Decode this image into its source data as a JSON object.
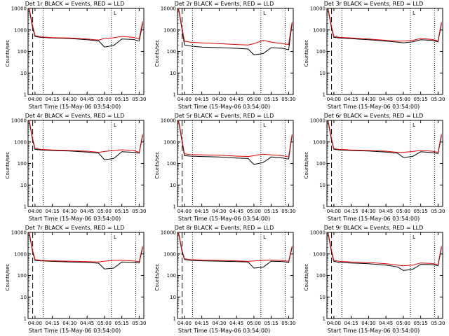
{
  "colors": {
    "events": "#000000",
    "lld": "#e00000",
    "axes": "#000000"
  },
  "chart_data": [
    {
      "type": "line",
      "title": "Det 1r BLACK = Events, RED = LLD",
      "xlabel": "Start Time (15-May-06 03:54:00)",
      "ylabel": "Counts/sec",
      "x_tick_labels": [
        "04:00",
        "04:15",
        "04:30",
        "04:45",
        "05:00",
        "05:15",
        "05:30"
      ],
      "y_tick_labels": [
        "1",
        "10",
        "100",
        "1000",
        "10000"
      ],
      "ylim": [
        1,
        10000
      ],
      "yscale": "log",
      "markers": [
        "L"
      ],
      "x": [
        "03:55",
        "03:58",
        "04:00",
        "04:05",
        "04:15",
        "04:30",
        "04:45",
        "04:55",
        "05:00",
        "05:08",
        "05:15",
        "05:25",
        "05:30",
        "05:33"
      ],
      "series": [
        {
          "name": "BLACK = Events",
          "values": [
            9000,
            1200,
            500,
            450,
            420,
            400,
            350,
            310,
            160,
            190,
            380,
            360,
            300,
            2000
          ]
        },
        {
          "name": "RED = LLD",
          "values": [
            10000,
            1500,
            550,
            470,
            440,
            420,
            380,
            340,
            400,
            430,
            500,
            450,
            380,
            2500
          ]
        }
      ]
    },
    {
      "type": "line",
      "title": "Det 2r BLACK = Events, RED = LLD",
      "xlabel": "Start Time (15-May-06 03:54:00)",
      "ylabel": "Counts/sec",
      "x_tick_labels": [
        "04:00",
        "04:15",
        "04:30",
        "04:45",
        "05:00",
        "05:15",
        "05:30"
      ],
      "y_tick_labels": [
        "1",
        "10",
        "100",
        "1000",
        "10000"
      ],
      "ylim": [
        1,
        10000
      ],
      "yscale": "log",
      "markers": [
        "L"
      ],
      "x": [
        "03:55",
        "03:58",
        "04:00",
        "04:05",
        "04:15",
        "04:30",
        "04:45",
        "04:55",
        "05:00",
        "05:08",
        "05:15",
        "05:25",
        "05:30",
        "05:33"
      ],
      "series": [
        {
          "name": "BLACK = Events",
          "values": [
            9000,
            1000,
            200,
            180,
            160,
            150,
            140,
            130,
            70,
            80,
            150,
            140,
            120,
            2000
          ]
        },
        {
          "name": "RED = LLD",
          "values": [
            10000,
            1200,
            300,
            270,
            250,
            230,
            210,
            200,
            230,
            330,
            270,
            230,
            210,
            2300
          ]
        }
      ]
    },
    {
      "type": "line",
      "title": "Det 3r BLACK = Events, RED = LLD",
      "xlabel": "Start Time (15-May-06 03:54:00)",
      "ylabel": "Counts/sec",
      "x_tick_labels": [
        "04:00",
        "04:15",
        "04:30",
        "04:45",
        "05:00",
        "05:15",
        "05:30"
      ],
      "y_tick_labels": [
        "1",
        "10",
        "100",
        "1000",
        "10000"
      ],
      "ylim": [
        1,
        10000
      ],
      "yscale": "log",
      "markers": [
        "L"
      ],
      "x": [
        "03:55",
        "03:58",
        "04:00",
        "04:05",
        "04:15",
        "04:30",
        "04:45",
        "04:55",
        "05:00",
        "05:08",
        "05:15",
        "05:25",
        "05:30",
        "05:33"
      ],
      "series": [
        {
          "name": "BLACK = Events",
          "values": [
            9000,
            1200,
            450,
            420,
            390,
            350,
            300,
            270,
            250,
            280,
            350,
            330,
            280,
            2000
          ]
        },
        {
          "name": "RED = LLD",
          "values": [
            10000,
            1400,
            500,
            450,
            420,
            380,
            330,
            300,
            300,
            330,
            400,
            360,
            310,
            2300
          ]
        }
      ]
    },
    {
      "type": "line",
      "title": "Det 4r BLACK = Events, RED = LLD",
      "xlabel": "Start Time (15-May-06 03:54:00)",
      "ylabel": "Counts/sec",
      "x_tick_labels": [
        "04:00",
        "04:15",
        "04:30",
        "04:45",
        "05:00",
        "05:15",
        "05:30"
      ],
      "y_tick_labels": [
        "1",
        "10",
        "100",
        "1000",
        "10000"
      ],
      "ylim": [
        1,
        10000
      ],
      "yscale": "log",
      "markers": [
        "L"
      ],
      "x": [
        "03:55",
        "03:58",
        "04:00",
        "04:05",
        "04:15",
        "04:30",
        "04:45",
        "04:55",
        "05:00",
        "05:08",
        "05:15",
        "05:25",
        "05:30",
        "05:33"
      ],
      "series": [
        {
          "name": "BLACK = Events",
          "values": [
            9000,
            1200,
            450,
            420,
            400,
            380,
            340,
            300,
            150,
            170,
            350,
            330,
            300,
            2000
          ]
        },
        {
          "name": "RED = LLD",
          "values": [
            10000,
            1400,
            500,
            450,
            420,
            400,
            370,
            330,
            360,
            400,
            430,
            400,
            330,
            2300
          ]
        }
      ]
    },
    {
      "type": "line",
      "title": "Det 5r BLACK = Events, RED = LLD",
      "xlabel": "Start Time (15-May-06 03:54:00)",
      "ylabel": "Counts/sec",
      "x_tick_labels": [
        "04:00",
        "04:15",
        "04:30",
        "04:45",
        "05:00",
        "05:15",
        "05:30"
      ],
      "y_tick_labels": [
        "1",
        "10",
        "100",
        "1000",
        "10000"
      ],
      "ylim": [
        1,
        10000
      ],
      "yscale": "log",
      "markers": [
        "L"
      ],
      "x": [
        "03:55",
        "03:58",
        "04:00",
        "04:05",
        "04:15",
        "04:30",
        "04:45",
        "04:55",
        "05:00",
        "05:08",
        "05:15",
        "05:25",
        "05:30",
        "05:33"
      ],
      "series": [
        {
          "name": "BLACK = Events",
          "values": [
            9000,
            1000,
            230,
            220,
            210,
            200,
            180,
            170,
            90,
            110,
            200,
            180,
            160,
            2000
          ]
        },
        {
          "name": "RED = LLD",
          "values": [
            10000,
            1200,
            280,
            260,
            250,
            240,
            220,
            210,
            230,
            270,
            250,
            230,
            200,
            2200
          ]
        }
      ]
    },
    {
      "type": "line",
      "title": "Det 6r BLACK = Events, RED = LLD",
      "xlabel": "Start Time (15-May-06 03:54:00)",
      "ylabel": "Counts/sec",
      "x_tick_labels": [
        "04:00",
        "04:15",
        "04:30",
        "04:45",
        "05:00",
        "05:15",
        "05:30"
      ],
      "y_tick_labels": [
        "1",
        "10",
        "100",
        "1000",
        "10000"
      ],
      "ylim": [
        1,
        10000
      ],
      "yscale": "log",
      "markers": [
        "L"
      ],
      "x": [
        "03:55",
        "03:58",
        "04:00",
        "04:05",
        "04:15",
        "04:30",
        "04:45",
        "04:55",
        "05:00",
        "05:08",
        "05:15",
        "05:25",
        "05:30",
        "05:33"
      ],
      "series": [
        {
          "name": "BLACK = Events",
          "values": [
            9000,
            1200,
            450,
            420,
            400,
            380,
            340,
            300,
            190,
            210,
            350,
            320,
            290,
            2000
          ]
        },
        {
          "name": "RED = LLD",
          "values": [
            10000,
            1400,
            480,
            450,
            420,
            400,
            370,
            330,
            330,
            360,
            400,
            370,
            330,
            2300
          ]
        }
      ]
    },
    {
      "type": "line",
      "title": "Det 7r BLACK = Events, RED = LLD",
      "xlabel": "Start Time (15-May-06 03:54:00)",
      "ylabel": "Counts/sec",
      "x_tick_labels": [
        "04:00",
        "04:15",
        "04:30",
        "04:45",
        "05:00",
        "05:15",
        "05:30"
      ],
      "y_tick_labels": [
        "1",
        "10",
        "100",
        "1000",
        "10000"
      ],
      "ylim": [
        1,
        10000
      ],
      "yscale": "log",
      "markers": [
        "L"
      ],
      "x": [
        "03:55",
        "03:58",
        "04:00",
        "04:05",
        "04:15",
        "04:30",
        "04:45",
        "04:55",
        "05:00",
        "05:08",
        "05:15",
        "05:25",
        "05:30",
        "05:33"
      ],
      "series": [
        {
          "name": "BLACK = Events",
          "values": [
            9000,
            1200,
            500,
            480,
            450,
            420,
            400,
            370,
            200,
            220,
            420,
            400,
            380,
            2000
          ]
        },
        {
          "name": "RED = LLD",
          "values": [
            10000,
            1400,
            550,
            500,
            480,
            460,
            440,
            420,
            460,
            500,
            500,
            470,
            430,
            2300
          ]
        }
      ]
    },
    {
      "type": "line",
      "title": "Det 8r BLACK = Events, RED = LLD",
      "xlabel": "Start Time (15-May-06 03:54:00)",
      "ylabel": "Counts/sec",
      "x_tick_labels": [
        "04:00",
        "04:15",
        "04:30",
        "04:45",
        "05:00",
        "05:15",
        "05:30"
      ],
      "y_tick_labels": [
        "1",
        "10",
        "100",
        "1000",
        "10000"
      ],
      "ylim": [
        1,
        10000
      ],
      "yscale": "log",
      "markers": [
        "L"
      ],
      "x": [
        "03:55",
        "03:58",
        "04:00",
        "04:05",
        "04:15",
        "04:30",
        "04:45",
        "04:55",
        "05:00",
        "05:08",
        "05:15",
        "05:25",
        "05:30",
        "05:33"
      ],
      "series": [
        {
          "name": "BLACK = Events",
          "values": [
            9000,
            1200,
            550,
            500,
            480,
            460,
            440,
            420,
            220,
            240,
            460,
            440,
            400,
            2000
          ]
        },
        {
          "name": "RED = LLD",
          "values": [
            10000,
            1400,
            600,
            550,
            520,
            500,
            480,
            450,
            470,
            500,
            520,
            490,
            450,
            2300
          ]
        }
      ]
    },
    {
      "type": "line",
      "title": "Det 9r BLACK = Events, RED = LLD",
      "xlabel": "Start Time (15-May-06 03:54:00)",
      "ylabel": "Counts/sec",
      "x_tick_labels": [
        "04:00",
        "04:15",
        "04:30",
        "04:45",
        "05:00",
        "05:15",
        "05:30"
      ],
      "y_tick_labels": [
        "1",
        "10",
        "100",
        "1000",
        "10000"
      ],
      "ylim": [
        1,
        10000
      ],
      "yscale": "log",
      "markers": [
        "L"
      ],
      "x": [
        "03:55",
        "03:58",
        "04:00",
        "04:05",
        "04:15",
        "04:30",
        "04:45",
        "04:55",
        "05:00",
        "05:08",
        "05:15",
        "05:25",
        "05:30",
        "05:33"
      ],
      "series": [
        {
          "name": "BLACK = Events",
          "values": [
            9000,
            1200,
            450,
            400,
            380,
            350,
            300,
            250,
            170,
            190,
            330,
            320,
            280,
            2000
          ]
        },
        {
          "name": "RED = LLD",
          "values": [
            10000,
            1400,
            500,
            450,
            420,
            400,
            350,
            300,
            280,
            300,
            380,
            360,
            320,
            2300
          ]
        }
      ]
    }
  ]
}
